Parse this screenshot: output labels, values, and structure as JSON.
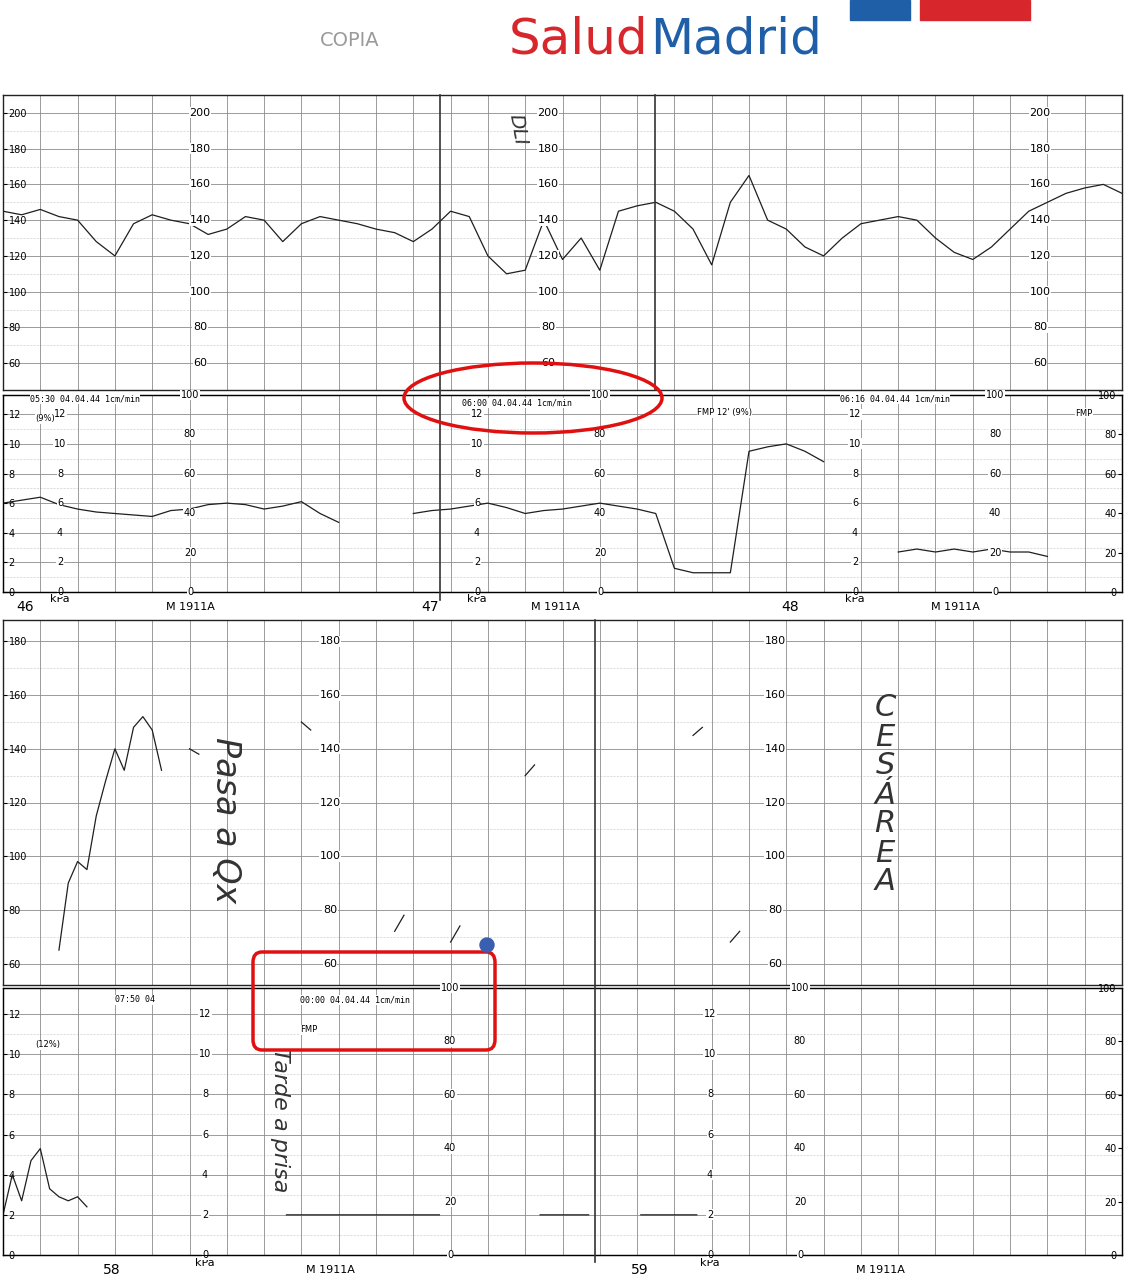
{
  "header": {
    "watermark": "COPIA",
    "logo": [
      "Salud",
      "Madrid"
    ]
  },
  "chart_data": [
    {
      "type": "line",
      "color": "#1f1f1f",
      "grid": true,
      "tick_labels": "y",
      "xlim": [
        0,
        30
      ],
      "xticks": [
        0,
        1,
        2,
        3,
        4,
        5,
        6,
        7,
        8,
        9,
        10,
        11,
        12,
        13,
        14,
        15,
        16,
        17,
        18,
        19,
        20,
        21,
        22,
        23,
        24,
        25,
        26,
        27,
        28,
        29,
        30
      ],
      "ylim": [
        45,
        210
      ],
      "yticks": [
        60,
        80,
        100,
        120,
        140,
        160,
        180,
        200
      ],
      "x": [
        0,
        0.5,
        1,
        1.5,
        2,
        2.5,
        3,
        3.5,
        4,
        4.5,
        5,
        5.5,
        6,
        6.5,
        7,
        7.5,
        8,
        8.5,
        9,
        9.5,
        10,
        10.5,
        11,
        11.5,
        12,
        12.5,
        13,
        13.5,
        14,
        14.5,
        15,
        15.5,
        16,
        16.5,
        17,
        17.5,
        18,
        18.5,
        19,
        19.5,
        20,
        20.5,
        21,
        21.5,
        22,
        22.5,
        23,
        23.5,
        24,
        24.5,
        25,
        25.5,
        26,
        26.5,
        27,
        27.5,
        28,
        28.5,
        29,
        29.5,
        30
      ],
      "values": [
        145,
        143,
        146,
        142,
        140,
        128,
        120,
        138,
        143,
        140,
        138,
        132,
        135,
        142,
        140,
        128,
        138,
        142,
        140,
        138,
        135,
        133,
        128,
        135,
        145,
        142,
        120,
        110,
        112,
        140,
        118,
        130,
        112,
        145,
        148,
        150,
        145,
        135,
        115,
        150,
        165,
        140,
        135,
        125,
        120,
        130,
        138,
        140,
        142,
        140,
        130,
        122,
        118,
        125,
        135,
        145,
        150,
        155,
        158,
        160,
        155
      ]
    },
    {
      "type": "line",
      "color": "#1f1f1f",
      "grid": true,
      "tick_labels": "y",
      "y_label": "kPa",
      "xlim": [
        0,
        30
      ],
      "xticks": [
        0,
        1,
        2,
        3,
        4,
        5,
        6,
        7,
        8,
        9,
        10,
        11,
        12,
        13,
        14,
        15,
        16,
        17,
        18,
        19,
        20,
        21,
        22,
        23,
        24,
        25,
        26,
        27,
        28,
        29,
        30
      ],
      "ylim": [
        0,
        13.3
      ],
      "yticks": [
        0,
        2,
        4,
        6,
        8,
        10,
        12
      ],
      "y2lim": [
        0,
        100
      ],
      "y2ticks": [
        0,
        20,
        40,
        60,
        80,
        100
      ],
      "x": [
        0,
        0.5,
        1,
        1.5,
        2,
        2.5,
        3,
        3.5,
        4,
        4.5,
        5,
        5.5,
        6,
        6.5,
        7,
        7.5,
        8,
        8.5,
        9,
        9.5,
        10,
        10.5,
        11,
        11.5,
        12,
        12.5,
        13,
        13.5,
        14,
        14.5,
        15,
        15.5,
        16,
        16.5,
        17,
        17.5,
        18,
        18.5,
        19,
        19.5,
        20,
        20.5,
        21,
        21.5,
        22,
        22.5,
        23,
        23.5,
        24,
        24.5,
        25,
        25.5,
        26,
        26.5,
        27,
        27.5,
        28,
        28.5,
        29,
        29.5,
        30
      ],
      "values": [
        6,
        6.2,
        6.4,
        5.9,
        5.6,
        5.4,
        5.3,
        5.2,
        5.1,
        5.5,
        5.6,
        5.9,
        6.0,
        5.9,
        5.6,
        5.8,
        6.1,
        5.3,
        4.7,
        null,
        null,
        null,
        5.3,
        5.5,
        5.6,
        5.8,
        6.0,
        5.7,
        5.3,
        5.5,
        5.6,
        5.8,
        6.0,
        5.8,
        5.6,
        5.3,
        1.6,
        1.3,
        1.3,
        1.3,
        9.5,
        9.8,
        10.0,
        9.5,
        8.8,
        null,
        null,
        null,
        2.7,
        2.9,
        2.7,
        2.9,
        2.7,
        2.9,
        2.7,
        2.7,
        2.4,
        null,
        null,
        null,
        null
      ]
    },
    {
      "type": "line",
      "color": "#1f1f1f",
      "grid": true,
      "tick_labels": "y",
      "xlim": [
        0,
        30
      ],
      "xticks": [
        0,
        1,
        2,
        3,
        4,
        5,
        6,
        7,
        8,
        9,
        10,
        11,
        12,
        13,
        14,
        15,
        16,
        17,
        18,
        19,
        20,
        21,
        22,
        23,
        24,
        25,
        26,
        27,
        28,
        29,
        30
      ],
      "ylim": [
        52,
        188
      ],
      "yticks": [
        60,
        80,
        100,
        120,
        140,
        160,
        180
      ],
      "x": [
        1.5,
        1.75,
        2.0,
        2.25,
        2.5,
        2.75,
        3.0,
        3.25,
        3.5,
        3.75,
        4.0,
        4.25,
        4.5,
        5.0,
        5.25,
        5.5,
        8.0,
        8.25,
        8.5,
        10.5,
        10.75,
        11.0,
        12.0,
        12.25,
        12.5,
        14.0,
        14.25,
        14.5,
        18.5,
        18.75,
        19.0,
        19.5,
        19.75
      ],
      "values": [
        65,
        90,
        98,
        95,
        115,
        128,
        140,
        132,
        148,
        152,
        147,
        132,
        null,
        140,
        138,
        null,
        150,
        147,
        null,
        72,
        78,
        null,
        68,
        74,
        null,
        130,
        134,
        null,
        145,
        148,
        null,
        68,
        72
      ]
    },
    {
      "type": "line",
      "color": "#1f1f1f",
      "grid": true,
      "tick_labels": "y",
      "y_label": "kPa",
      "xlim": [
        0,
        30
      ],
      "xticks": [
        0,
        1,
        2,
        3,
        4,
        5,
        6,
        7,
        8,
        9,
        10,
        11,
        12,
        13,
        14,
        15,
        16,
        17,
        18,
        19,
        20,
        21,
        22,
        23,
        24,
        25,
        26,
        27,
        28,
        29,
        30
      ],
      "ylim": [
        0,
        13.3
      ],
      "yticks": [
        0,
        2,
        4,
        6,
        8,
        10,
        12
      ],
      "y2lim": [
        0,
        100
      ],
      "y2ticks": [
        0,
        20,
        40,
        60,
        80,
        100
      ],
      "x": [
        0,
        0.25,
        0.5,
        0.75,
        1.0,
        1.25,
        1.5,
        1.75,
        2.0,
        2.25,
        2.5,
        7.6,
        9.0,
        10.5,
        11.7,
        11.8,
        14.4,
        15.7,
        15.8,
        17.1,
        18.6
      ],
      "values": [
        2.0,
        4.0,
        2.7,
        4.7,
        5.3,
        3.3,
        2.9,
        2.7,
        2.9,
        2.4,
        null,
        2.0,
        2.0,
        2.0,
        2.0,
        null,
        2.0,
        2.0,
        null,
        2.0,
        2.0
      ]
    }
  ],
  "strips": [
    {
      "pages": [
        46,
        47,
        48
      ],
      "paper_code": "M 1911A",
      "stamps": [
        "05:30 04.04.44 1cm/min",
        "06:00 04.04.44 1cm/min",
        "06:16 04.04.44 1cm/min"
      ],
      "marks": [
        "(9%)",
        "FMP 12' (9%)",
        "FMP"
      ],
      "notes": [
        "DLI"
      ]
    },
    {
      "pages": [
        58,
        59
      ],
      "paper_code": "M 1911A",
      "stamps": [
        "07:50 04",
        "00:00 04.04.44 1cm/min"
      ],
      "marks": [
        "(12%)",
        "FMP"
      ],
      "notes": [
        "Pasa a Qx",
        "Tarde a prisa",
        "CESÁREA"
      ]
    }
  ]
}
